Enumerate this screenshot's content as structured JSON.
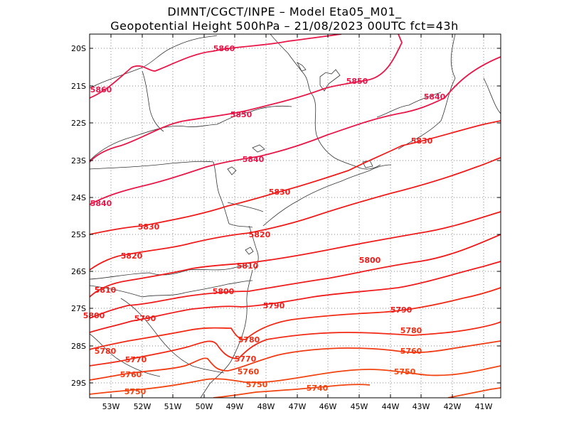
{
  "title": {
    "line1": "DIMNT/CGCT/INPE –  Model Eta05_M01_",
    "line2": "Geopotential Height 500hPa –  21/08/2023 00UTC fct=43h"
  },
  "map": {
    "lat_labels": [
      "20S",
      "21S",
      "22S",
      "23S",
      "24S",
      "25S",
      "26S",
      "27S",
      "28S",
      "29S"
    ],
    "lon_labels": [
      "53W",
      "52W",
      "51W",
      "50W",
      "49W",
      "48W",
      "47W",
      "46W",
      "45W",
      "44W",
      "43W",
      "42W",
      "41W"
    ],
    "contour_labels": [
      "5860",
      "5860",
      "5850",
      "5850",
      "5840",
      "5840",
      "5840",
      "5830",
      "5830",
      "5830",
      "5820",
      "5820",
      "5810",
      "5810",
      "5800",
      "5800",
      "5800",
      "5790",
      "5790",
      "5790",
      "5780",
      "5780",
      "5780",
      "5770",
      "5770",
      "5770",
      "5760",
      "5760",
      "5760",
      "5750",
      "5750",
      "5750",
      "5740"
    ],
    "colors": {
      "high": "#e8174a",
      "mid": "#f01c1c",
      "low": "#f24410",
      "border": "#333333",
      "grid": "#888888"
    }
  }
}
